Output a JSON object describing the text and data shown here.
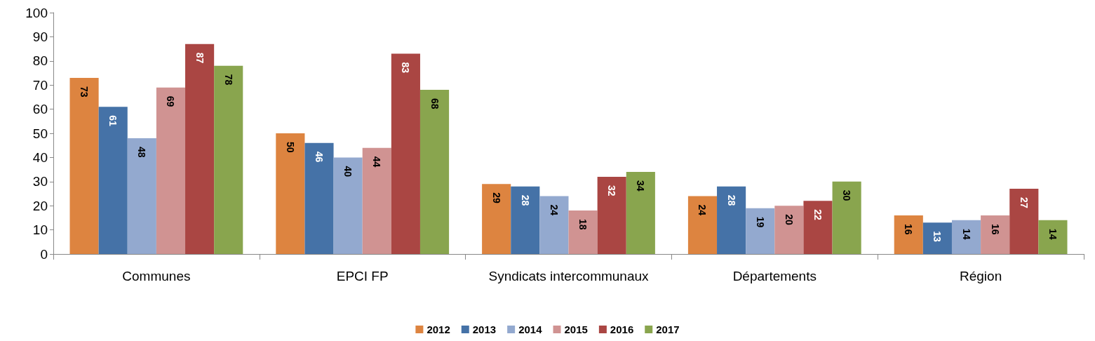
{
  "chart_data": {
    "type": "bar",
    "categories": [
      "Communes",
      "EPCI FP",
      "Syndicats intercommunaux",
      "Départements",
      "Région"
    ],
    "series": [
      {
        "name": "2012",
        "color": "#dd8440",
        "values": [
          73,
          50,
          29,
          24,
          16
        ]
      },
      {
        "name": "2013",
        "color": "#4572a7",
        "values": [
          61,
          46,
          28,
          28,
          13
        ]
      },
      {
        "name": "2014",
        "color": "#93a9cf",
        "values": [
          48,
          40,
          24,
          19,
          14
        ]
      },
      {
        "name": "2015",
        "color": "#d09392",
        "values": [
          69,
          44,
          18,
          20,
          16
        ]
      },
      {
        "name": "2016",
        "color": "#aa4643",
        "values": [
          87,
          83,
          32,
          22,
          27
        ]
      },
      {
        "name": "2017",
        "color": "#89a54e",
        "values": [
          78,
          68,
          34,
          30,
          14
        ]
      }
    ],
    "ylim": [
      0,
      100
    ],
    "yticks": [
      0,
      10,
      20,
      30,
      40,
      50,
      60,
      70,
      80,
      90,
      100
    ],
    "grid": false,
    "legend": "bottom",
    "data_labels": true
  }
}
